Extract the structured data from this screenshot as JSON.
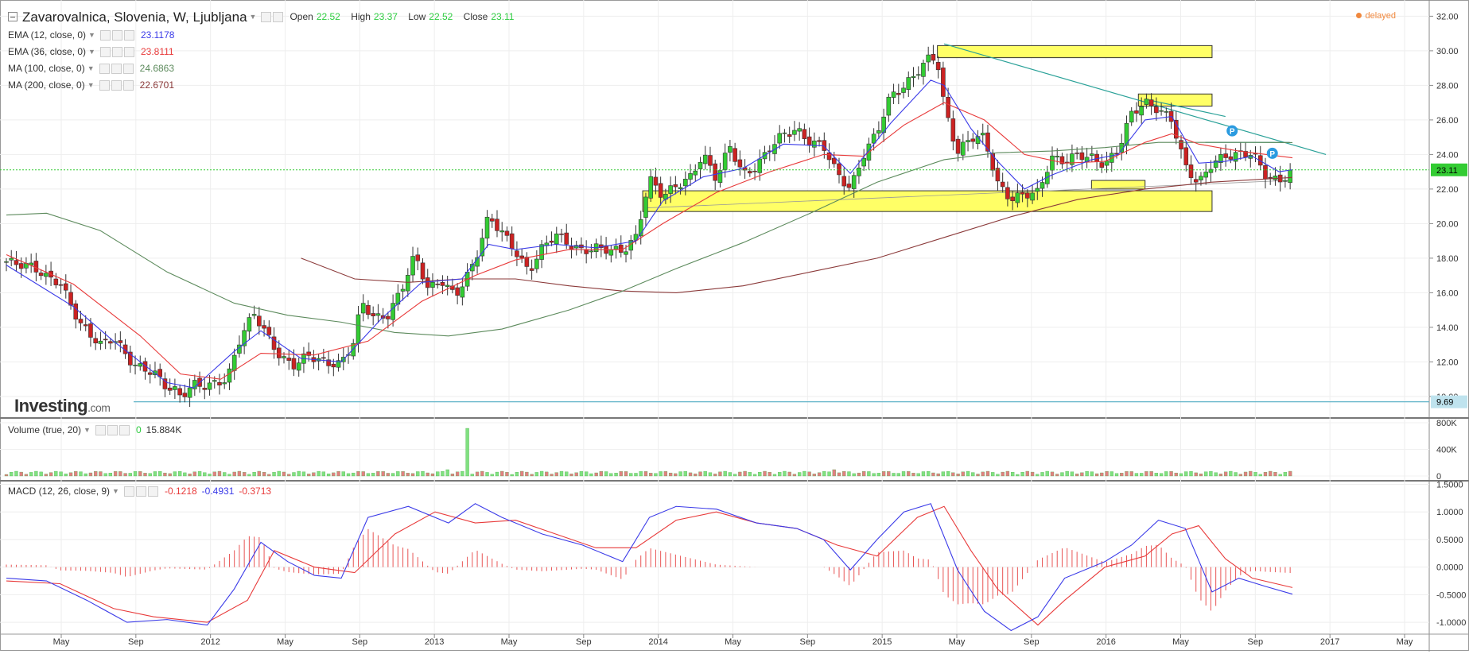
{
  "header": {
    "title": "Zavarovalnica, Slovenia, W, Ljubljana",
    "open_label": "Open",
    "open": "22.52",
    "high_label": "High",
    "high": "23.37",
    "low_label": "Low",
    "low": "22.52",
    "close_label": "Close",
    "close": "23.11",
    "delayed": "delayed",
    "brand": "Investing",
    "brand_suffix": ".com"
  },
  "indicators": [
    {
      "label": "EMA (12, close, 0)",
      "value": "23.1178",
      "color": "#3a3ae8"
    },
    {
      "label": "EMA (36, close, 0)",
      "value": "23.8111",
      "color": "#e83a3a"
    },
    {
      "label": "MA (100, close, 0)",
      "value": "24.6863",
      "color": "#5c8a5c"
    },
    {
      "label": "MA (200, close, 0)",
      "value": "22.6701",
      "color": "#8b3a3a"
    }
  ],
  "volume_panel": {
    "label": "Volume (true, 20)",
    "v1": "0",
    "v2": "15.884K"
  },
  "macd_panel": {
    "label": "MACD (12, 26, close, 9)",
    "v1": "-0.1218",
    "v2": "-0.4931",
    "v3": "-0.3713"
  },
  "chart_data": {
    "type": "candlestick",
    "x_tick_labels": [
      "May",
      "Sep",
      "2012",
      "May",
      "Sep",
      "2013",
      "May",
      "Sep",
      "2014",
      "May",
      "Sep",
      "2015",
      "May",
      "Sep",
      "2016",
      "May",
      "Sep",
      "2017",
      "May"
    ],
    "price_axis": {
      "ticks": [
        "32.00",
        "30.00",
        "28.00",
        "26.00",
        "24.00",
        "22.00",
        "20.00",
        "18.00",
        "16.00",
        "14.00",
        "12.00",
        "10.00"
      ],
      "range": [
        8.8,
        32.8
      ]
    },
    "last_price_label": "23.11",
    "hline_label": "9.69",
    "volume_axis": {
      "ticks": [
        "800K",
        "400K",
        "0"
      ]
    },
    "macd_axis": {
      "ticks": [
        "1.5000",
        "1.0000",
        "0.5000",
        "0.0000",
        "-0.5000",
        "-1.0000"
      ],
      "range": [
        -1.2,
        1.55
      ]
    },
    "close_path": [
      [
        0.0,
        17.8
      ],
      [
        2.0,
        17.5
      ],
      [
        3.0,
        16.9
      ],
      [
        4.0,
        16.6
      ],
      [
        5.5,
        14.2
      ],
      [
        7.0,
        13.0
      ],
      [
        8.0,
        13.4
      ],
      [
        9.5,
        11.8
      ],
      [
        11.0,
        11.4
      ],
      [
        12.0,
        10.5
      ],
      [
        12.5,
        10.4
      ],
      [
        13.0,
        10.0
      ],
      [
        14.0,
        10.7
      ],
      [
        15.0,
        10.6
      ],
      [
        16.5,
        11.0
      ],
      [
        17.5,
        13.5
      ],
      [
        18.5,
        14.8
      ],
      [
        19.5,
        13.5
      ],
      [
        20.5,
        12.2
      ],
      [
        21.5,
        11.8
      ],
      [
        22.5,
        12.4
      ],
      [
        24.0,
        11.9
      ],
      [
        25.0,
        11.9
      ],
      [
        26.0,
        13.3
      ],
      [
        26.5,
        15.5
      ],
      [
        27.5,
        14.5
      ],
      [
        28.5,
        14.7
      ],
      [
        29.5,
        16.2
      ],
      [
        30.5,
        18.2
      ],
      [
        31.5,
        16.2
      ],
      [
        32.5,
        16.7
      ],
      [
        33.5,
        15.8
      ],
      [
        34.5,
        17.1
      ],
      [
        35.0,
        17.9
      ],
      [
        36.0,
        20.4
      ],
      [
        37.0,
        19.5
      ],
      [
        38.0,
        18.4
      ],
      [
        39.0,
        17.2
      ],
      [
        40.0,
        18.6
      ],
      [
        41.0,
        19.4
      ],
      [
        42.0,
        18.8
      ],
      [
        43.0,
        18.4
      ],
      [
        44.0,
        18.6
      ],
      [
        45.0,
        18.5
      ],
      [
        46.0,
        18.4
      ],
      [
        47.0,
        19.2
      ],
      [
        48.0,
        22.6
      ],
      [
        49.0,
        21.6
      ],
      [
        50.0,
        22.2
      ],
      [
        51.0,
        22.6
      ],
      [
        52.0,
        24.0
      ],
      [
        53.0,
        22.6
      ],
      [
        54.0,
        24.5
      ],
      [
        55.0,
        22.8
      ],
      [
        56.0,
        23.3
      ],
      [
        57.0,
        24.4
      ],
      [
        58.0,
        25.2
      ],
      [
        59.0,
        25.4
      ],
      [
        60.0,
        24.7
      ],
      [
        61.0,
        24.5
      ],
      [
        62.0,
        22.9
      ],
      [
        63.0,
        22.0
      ],
      [
        64.0,
        24.0
      ],
      [
        65.0,
        25.3
      ],
      [
        66.0,
        27.4
      ],
      [
        67.0,
        27.9
      ],
      [
        68.0,
        28.8
      ],
      [
        69.0,
        29.7
      ],
      [
        69.5,
        29.4
      ],
      [
        70.0,
        26.8
      ],
      [
        71.0,
        24.1
      ],
      [
        72.0,
        25.0
      ],
      [
        73.0,
        25.0
      ],
      [
        74.0,
        22.3
      ],
      [
        75.0,
        21.4
      ],
      [
        76.0,
        21.7
      ],
      [
        77.0,
        21.8
      ],
      [
        78.0,
        23.8
      ],
      [
        79.0,
        23.6
      ],
      [
        80.0,
        24.0
      ],
      [
        81.0,
        23.8
      ],
      [
        82.0,
        23.4
      ],
      [
        83.0,
        24.3
      ],
      [
        84.0,
        26.4
      ],
      [
        85.0,
        27.0
      ],
      [
        86.0,
        26.6
      ],
      [
        87.0,
        26.0
      ],
      [
        88.0,
        23.3
      ],
      [
        89.0,
        22.3
      ],
      [
        90.0,
        23.5
      ],
      [
        91.0,
        23.9
      ],
      [
        92.0,
        24.0
      ],
      [
        93.0,
        24.1
      ],
      [
        94.0,
        22.8
      ],
      [
        95.0,
        22.4
      ],
      [
        96.0,
        23.1
      ]
    ],
    "ema12_path": [
      [
        0,
        17.6
      ],
      [
        5,
        15.2
      ],
      [
        8,
        13.2
      ],
      [
        12,
        10.8
      ],
      [
        14,
        10.5
      ],
      [
        17,
        12.6
      ],
      [
        19,
        13.8
      ],
      [
        22,
        12.2
      ],
      [
        25,
        12.0
      ],
      [
        28,
        14.5
      ],
      [
        31,
        16.6
      ],
      [
        34,
        16.8
      ],
      [
        36,
        18.8
      ],
      [
        38,
        18.5
      ],
      [
        41,
        18.8
      ],
      [
        44,
        18.6
      ],
      [
        47,
        19.0
      ],
      [
        49,
        21.3
      ],
      [
        52,
        22.7
      ],
      [
        55,
        23.2
      ],
      [
        58,
        24.6
      ],
      [
        61,
        24.5
      ],
      [
        63,
        22.9
      ],
      [
        66,
        25.8
      ],
      [
        69,
        28.3
      ],
      [
        70,
        28.0
      ],
      [
        72,
        25.5
      ],
      [
        74,
        23.6
      ],
      [
        76,
        22.0
      ],
      [
        78,
        22.8
      ],
      [
        81,
        23.7
      ],
      [
        83,
        24.0
      ],
      [
        85,
        26.0
      ],
      [
        87,
        26.2
      ],
      [
        89,
        23.5
      ],
      [
        91,
        23.6
      ],
      [
        93,
        23.9
      ],
      [
        95,
        23.0
      ],
      [
        96,
        23.12
      ]
    ],
    "ema36_path": [
      [
        0,
        18.2
      ],
      [
        5,
        16.5
      ],
      [
        10,
        13.5
      ],
      [
        13,
        11.3
      ],
      [
        16,
        11.0
      ],
      [
        19,
        12.5
      ],
      [
        23,
        12.4
      ],
      [
        27,
        13.2
      ],
      [
        31,
        15.5
      ],
      [
        35,
        17.0
      ],
      [
        38,
        17.9
      ],
      [
        42,
        18.5
      ],
      [
        46,
        18.5
      ],
      [
        49,
        20.0
      ],
      [
        53,
        21.8
      ],
      [
        57,
        23.0
      ],
      [
        61,
        24.0
      ],
      [
        64,
        23.9
      ],
      [
        67,
        25.7
      ],
      [
        70,
        27.0
      ],
      [
        73,
        26.0
      ],
      [
        76,
        24.0
      ],
      [
        79,
        23.5
      ],
      [
        82,
        23.6
      ],
      [
        85,
        24.7
      ],
      [
        87,
        25.2
      ],
      [
        89,
        24.6
      ],
      [
        92,
        24.2
      ],
      [
        96,
        23.81
      ]
    ],
    "ma100_path": [
      [
        0,
        20.5
      ],
      [
        3,
        20.6
      ],
      [
        7,
        19.6
      ],
      [
        12,
        17.2
      ],
      [
        17,
        15.4
      ],
      [
        21,
        14.7
      ],
      [
        25,
        14.3
      ],
      [
        29,
        13.7
      ],
      [
        33,
        13.5
      ],
      [
        37,
        13.9
      ],
      [
        42,
        15.0
      ],
      [
        46,
        16.1
      ],
      [
        50,
        17.4
      ],
      [
        55,
        18.9
      ],
      [
        60,
        20.6
      ],
      [
        65,
        22.4
      ],
      [
        70,
        23.7
      ],
      [
        74,
        24.1
      ],
      [
        78,
        24.2
      ],
      [
        82,
        24.4
      ],
      [
        86,
        24.7
      ],
      [
        90,
        24.7
      ],
      [
        93,
        24.7
      ],
      [
        96,
        24.69
      ]
    ],
    "ma200_path": [
      [
        22,
        18.0
      ],
      [
        26,
        16.8
      ],
      [
        30,
        16.6
      ],
      [
        34,
        16.8
      ],
      [
        38,
        16.8
      ],
      [
        42,
        16.4
      ],
      [
        46,
        16.1
      ],
      [
        50,
        16.0
      ],
      [
        55,
        16.4
      ],
      [
        60,
        17.2
      ],
      [
        65,
        18.0
      ],
      [
        70,
        19.2
      ],
      [
        75,
        20.4
      ],
      [
        80,
        21.4
      ],
      [
        85,
        22.0
      ],
      [
        90,
        22.4
      ],
      [
        96,
        22.67
      ]
    ],
    "macd_path": [
      [
        0,
        -0.2
      ],
      [
        3,
        -0.25
      ],
      [
        6,
        -0.6
      ],
      [
        9,
        -1.0
      ],
      [
        12,
        -0.95
      ],
      [
        15,
        -1.05
      ],
      [
        17,
        -0.4
      ],
      [
        19,
        0.45
      ],
      [
        21,
        0.1
      ],
      [
        23,
        -0.15
      ],
      [
        25,
        -0.2
      ],
      [
        27,
        0.9
      ],
      [
        30,
        1.1
      ],
      [
        33,
        0.8
      ],
      [
        35,
        1.15
      ],
      [
        37,
        0.9
      ],
      [
        40,
        0.6
      ],
      [
        43,
        0.4
      ],
      [
        46,
        0.1
      ],
      [
        48,
        0.9
      ],
      [
        50,
        1.1
      ],
      [
        53,
        1.05
      ],
      [
        56,
        0.8
      ],
      [
        59,
        0.7
      ],
      [
        61,
        0.5
      ],
      [
        63,
        -0.05
      ],
      [
        65,
        0.5
      ],
      [
        67,
        1.0
      ],
      [
        69,
        1.15
      ],
      [
        71,
        -0.05
      ],
      [
        73,
        -0.8
      ],
      [
        75,
        -1.15
      ],
      [
        77,
        -0.9
      ],
      [
        79,
        -0.2
      ],
      [
        82,
        0.1
      ],
      [
        84,
        0.4
      ],
      [
        86,
        0.85
      ],
      [
        88,
        0.7
      ],
      [
        90,
        -0.45
      ],
      [
        92,
        -0.2
      ],
      [
        94,
        -0.35
      ],
      [
        96,
        -0.49
      ]
    ],
    "signal_path": [
      [
        0,
        -0.25
      ],
      [
        4,
        -0.3
      ],
      [
        8,
        -0.75
      ],
      [
        11,
        -0.9
      ],
      [
        15,
        -1.0
      ],
      [
        18,
        -0.6
      ],
      [
        20,
        0.3
      ],
      [
        23,
        0.0
      ],
      [
        26,
        -0.1
      ],
      [
        29,
        0.6
      ],
      [
        32,
        1.0
      ],
      [
        35,
        0.8
      ],
      [
        38,
        0.85
      ],
      [
        41,
        0.6
      ],
      [
        44,
        0.35
      ],
      [
        47,
        0.35
      ],
      [
        50,
        0.85
      ],
      [
        53,
        1.0
      ],
      [
        56,
        0.8
      ],
      [
        59,
        0.7
      ],
      [
        62,
        0.4
      ],
      [
        65,
        0.2
      ],
      [
        68,
        0.9
      ],
      [
        70,
        1.1
      ],
      [
        72,
        0.3
      ],
      [
        74,
        -0.4
      ],
      [
        77,
        -1.05
      ],
      [
        79,
        -0.6
      ],
      [
        82,
        0.0
      ],
      [
        85,
        0.2
      ],
      [
        87,
        0.6
      ],
      [
        89,
        0.75
      ],
      [
        91,
        0.15
      ],
      [
        93,
        -0.2
      ],
      [
        96,
        -0.37
      ]
    ],
    "zones": [
      [
        69.5,
        29.6,
        90,
        30.3
      ],
      [
        84.5,
        26.8,
        90,
        27.5
      ],
      [
        47.5,
        20.7,
        90,
        21.9
      ],
      [
        81,
        22.0,
        85,
        22.5
      ]
    ]
  }
}
